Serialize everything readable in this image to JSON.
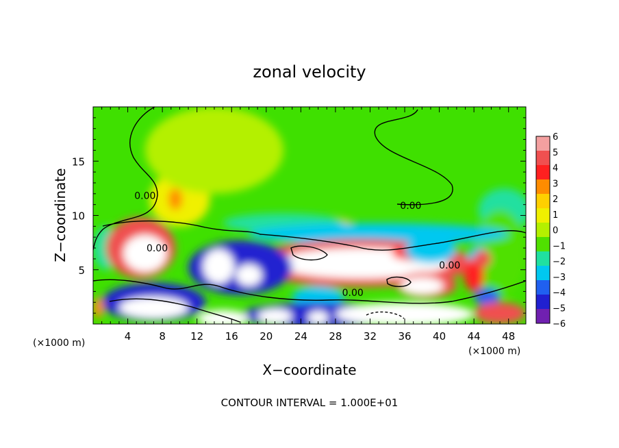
{
  "chart_data": {
    "type": "heatmap",
    "title": "zonal velocity",
    "xlabel": "X−coordinate",
    "ylabel": "Z−coordinate",
    "x_unit_left": "(×1000 m)",
    "x_unit_right": "(×1000 m)",
    "footer": "CONTOUR INTERVAL = 1.000E+01",
    "xlim": [
      0,
      50
    ],
    "ylim": [
      0,
      20
    ],
    "x_ticks": [
      4,
      8,
      12,
      16,
      20,
      24,
      28,
      32,
      36,
      40,
      44,
      48
    ],
    "x_tick_labels": [
      "4",
      "8",
      "12",
      "16",
      "20",
      "24",
      "28",
      "32",
      "36",
      "40",
      "44",
      "48"
    ],
    "y_ticks": [
      5,
      10,
      15
    ],
    "y_tick_labels": [
      "5",
      "10",
      "15"
    ],
    "colorbar": {
      "min": -6,
      "max": 6,
      "ticks": [
        6,
        5,
        4,
        3,
        2,
        1,
        0,
        -1,
        -2,
        -3,
        -4,
        -5,
        -6
      ],
      "tick_labels": [
        "6",
        "5",
        "4",
        "3",
        "2",
        "1",
        "0",
        "−1",
        "−2",
        "−3",
        "−4",
        "−5",
        "−6"
      ],
      "colors": [
        "#f4a0a0",
        "#f05050",
        "#ff2020",
        "#ff8c00",
        "#ffd000",
        "#f0f000",
        "#b4f000",
        "#50e000",
        "#20e0a0",
        "#00c8f0",
        "#2060f0",
        "#2020d0",
        "#7020b0"
      ]
    },
    "contour_labels": [
      {
        "text": "0.00",
        "x": 36.7,
        "y": 10.6
      },
      {
        "text": "0.00",
        "x": 41.2,
        "y": 5.1
      },
      {
        "text": "0.00",
        "x": 30.0,
        "y": 2.6
      },
      {
        "text": "0.00",
        "x": 7.4,
        "y": 6.7
      },
      {
        "text": "0.00",
        "x": 6.0,
        "y": 11.5
      }
    ],
    "blobs": [
      {
        "v": 0.8,
        "x": 10,
        "y": 11.5,
        "rx": 3.5,
        "ry": 2.5
      },
      {
        "v": 0.5,
        "x": 14,
        "y": 16,
        "rx": 8,
        "ry": 4
      },
      {
        "v": 3,
        "x": 9.5,
        "y": 11.5,
        "rx": 0.8,
        "ry": 1
      },
      {
        "v": 2,
        "x": 26,
        "y": 9.2,
        "rx": 4,
        "ry": 0.7
      },
      {
        "v": -1.5,
        "x": 47.5,
        "y": 10.5,
        "rx": 3,
        "ry": 2
      },
      {
        "v": -1,
        "x": 47,
        "y": 6.5,
        "rx": 3,
        "ry": 4
      },
      {
        "v": -1.5,
        "x": 1.5,
        "y": 7,
        "rx": 1.5,
        "ry": 2
      },
      {
        "v": -1.8,
        "x": 22,
        "y": 9.3,
        "rx": 7,
        "ry": 0.9
      },
      {
        "v": -2.5,
        "x": 33,
        "y": 8.3,
        "rx": 15,
        "ry": 1.0
      },
      {
        "v": 5,
        "x": 5.5,
        "y": 7.0,
        "rx": 4,
        "ry": 2.8
      },
      {
        "v": 7,
        "x": 6,
        "y": 6.5,
        "rx": 2.5,
        "ry": 1.7
      },
      {
        "v": 5,
        "x": 31,
        "y": 5.6,
        "rx": 13,
        "ry": 2.2
      },
      {
        "v": 7,
        "x": 31,
        "y": 5.6,
        "rx": 10,
        "ry": 1.4
      },
      {
        "v": 5,
        "x": 38.5,
        "y": 3.6,
        "rx": 3.5,
        "ry": 1.2
      },
      {
        "v": 7,
        "x": 38,
        "y": 3.5,
        "rx": 2.5,
        "ry": 0.8
      },
      {
        "v": 4,
        "x": 37.5,
        "y": 6.5,
        "rx": 3,
        "ry": 0.7
      },
      {
        "v": -5,
        "x": 17,
        "y": 5.2,
        "rx": 6,
        "ry": 2.5
      },
      {
        "v": 7,
        "x": 14.5,
        "y": 5.3,
        "rx": 1.8,
        "ry": 1.6
      },
      {
        "v": 7,
        "x": 18,
        "y": 4.5,
        "rx": 1.5,
        "ry": 1.0
      },
      {
        "v": -3,
        "x": 26,
        "y": 2.5,
        "rx": 3,
        "ry": 1
      },
      {
        "v": -3,
        "x": 39,
        "y": 6.8,
        "rx": 3,
        "ry": 1.2
      },
      {
        "v": -2.5,
        "x": 44.5,
        "y": 6.2,
        "rx": 1.3,
        "ry": 0.9
      },
      {
        "v": -3.5,
        "x": 45.5,
        "y": 2.5,
        "rx": 1.5,
        "ry": 0.8
      },
      {
        "v": 4,
        "x": 44,
        "y": 4.5,
        "rx": 1.2,
        "ry": 1.5
      },
      {
        "v": 5,
        "x": 47,
        "y": 1,
        "rx": 3,
        "ry": 1
      },
      {
        "v": 5,
        "x": 45,
        "y": 6,
        "rx": 1,
        "ry": 0.8
      },
      {
        "v": -5,
        "x": 7,
        "y": 2,
        "rx": 6,
        "ry": 1.8
      },
      {
        "v": 7,
        "x": 7,
        "y": 1.5,
        "rx": 4,
        "ry": 1
      },
      {
        "v": 3,
        "x": 0.6,
        "y": 1.5,
        "rx": 0.6,
        "ry": 1
      },
      {
        "v": -5,
        "x": 26,
        "y": 0.8,
        "rx": 9,
        "ry": 1.2
      },
      {
        "v": 7,
        "x": 36,
        "y": 0.9,
        "rx": 8,
        "ry": 1.1
      },
      {
        "v": 7,
        "x": 15,
        "y": 0.5,
        "rx": 3,
        "ry": 0.8
      },
      {
        "v": 7,
        "x": 21,
        "y": 0.7,
        "rx": 2,
        "ry": 0.7
      },
      {
        "v": 7,
        "x": 26,
        "y": 0.6,
        "rx": 1.2,
        "ry": 0.6
      }
    ]
  }
}
